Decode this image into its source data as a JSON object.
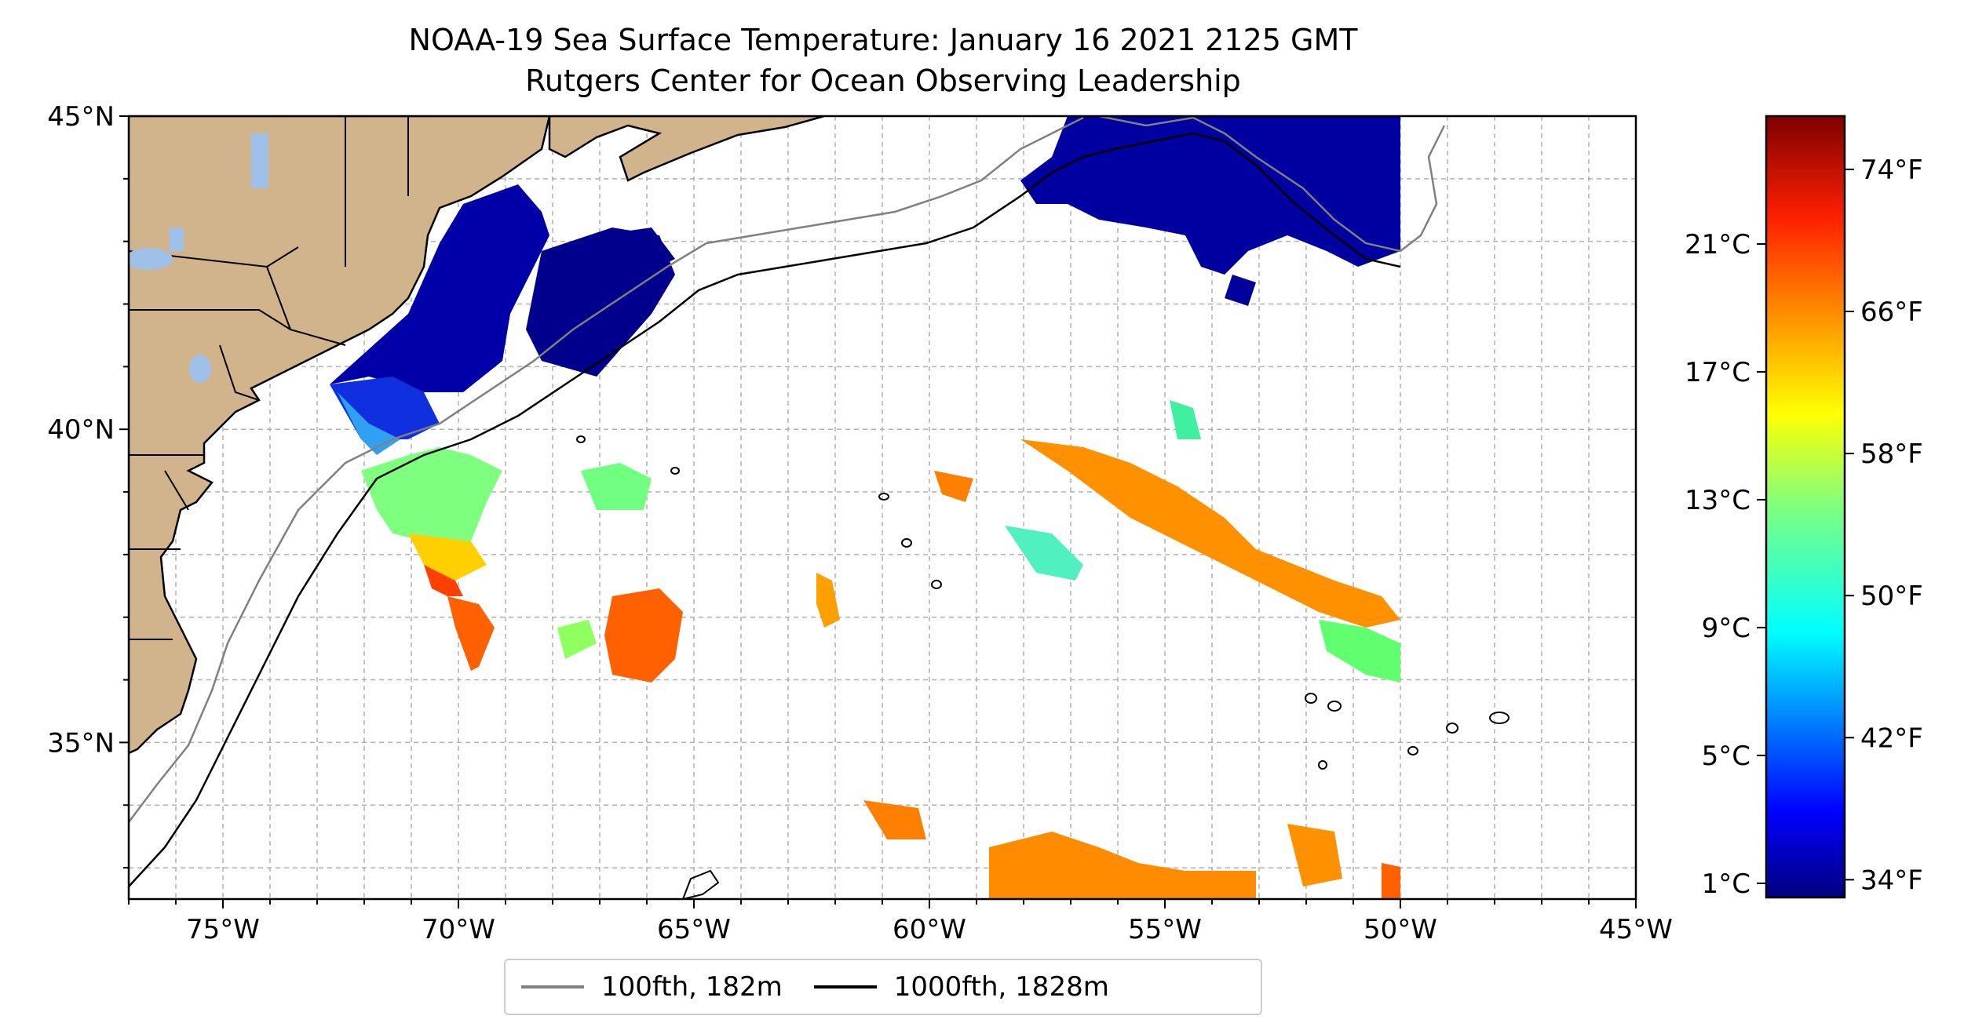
{
  "title": {
    "line1": "NOAA-19 Sea Surface Temperature: January 16 2021 2125 GMT",
    "line2": "Rutgers Center for Ocean Observing Leadership"
  },
  "map": {
    "lon_range": [
      -77,
      -45
    ],
    "lat_range": [
      32.5,
      45
    ],
    "lon_ticks": [
      "75°W",
      "70°W",
      "65°W",
      "60°W",
      "55°W",
      "50°W",
      "45°W"
    ],
    "lat_ticks": [
      "35°N",
      "40°N",
      "45°N"
    ],
    "land_color": "#d2b48c",
    "lake_color": "#9fc0e8",
    "grid": "dashed, every 1°",
    "scale": "jet"
  },
  "legend": {
    "items": [
      {
        "label": "100fth, 182m",
        "color": "#808080"
      },
      {
        "label": "1000fth, 1828m",
        "color": "#000000"
      }
    ]
  },
  "colorbar": {
    "celsius_ticks": [
      "1°C",
      "5°C",
      "9°C",
      "13°C",
      "17°C",
      "21°C"
    ],
    "fahrenheit_ticks": [
      "34°F",
      "42°F",
      "50°F",
      "58°F",
      "66°F",
      "74°F"
    ],
    "range_f": [
      33,
      77
    ]
  }
}
